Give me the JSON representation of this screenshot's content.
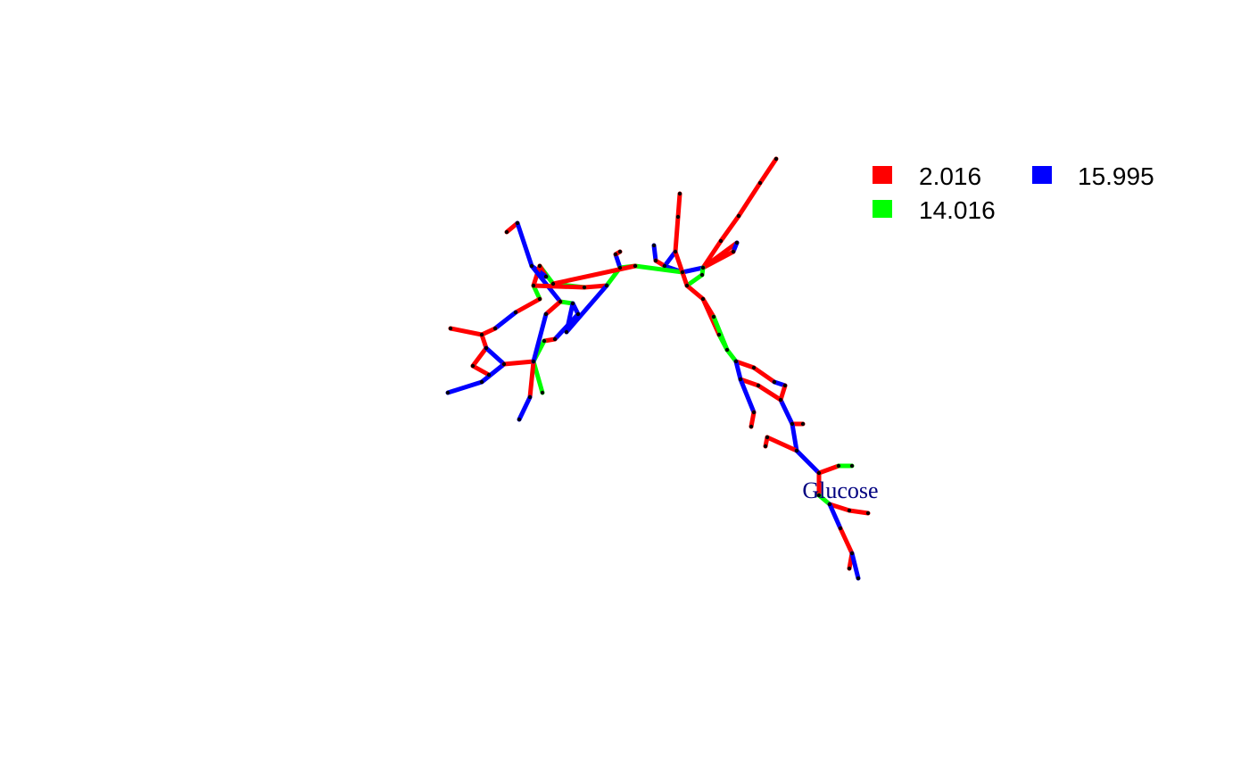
{
  "legend": {
    "items": [
      {
        "label": "2.016",
        "color": "#FF0000"
      },
      {
        "label": "14.016",
        "color": "#00FF00"
      },
      {
        "label": "15.995",
        "color": "#0000FF"
      }
    ]
  },
  "network": {
    "highlight_label": "Glucose",
    "highlight_label_color": "#000080",
    "node_color": "#000000"
  }
}
